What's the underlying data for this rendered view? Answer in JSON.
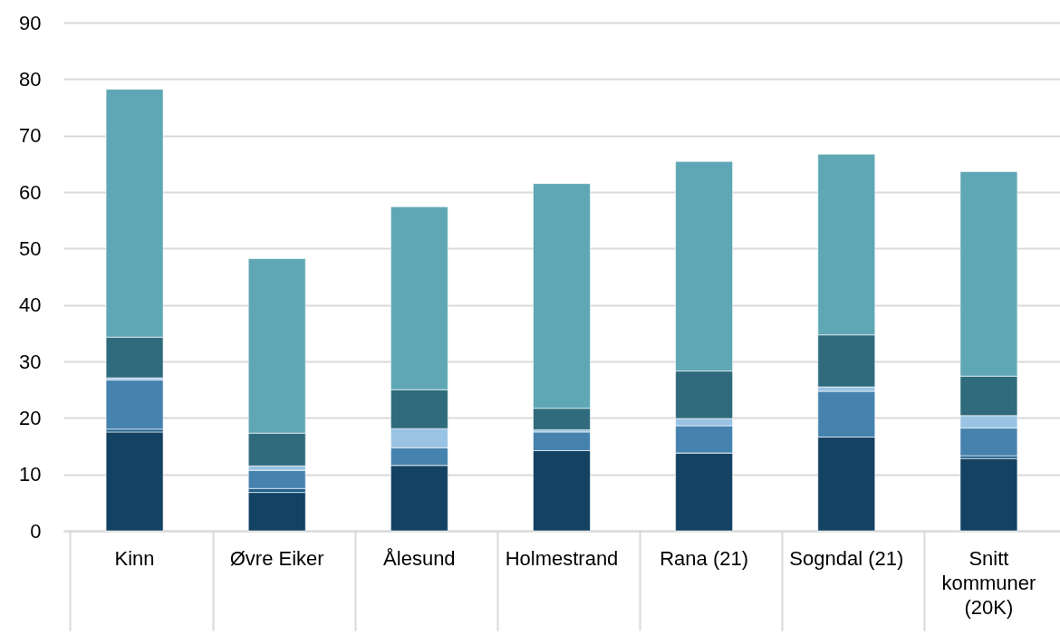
{
  "chart_data": {
    "type": "bar",
    "stacked": true,
    "categories": [
      "Kinn",
      "Øvre Eiker",
      "Ålesund",
      "Holmestrand",
      "Rana (21)",
      "Sogndal (21)",
      "Snitt kommuner (20K)"
    ],
    "series": [
      {
        "color": "#134263",
        "values": [
          17.5,
          6.8,
          11.6,
          14.2,
          13.8,
          16.6,
          12.8
        ]
      },
      {
        "color": "#1f5f8b",
        "values": [
          0.5,
          0.7,
          0,
          0,
          0,
          0,
          0.5
        ]
      },
      {
        "color": "#4682ae",
        "values": [
          8.7,
          3.2,
          3.1,
          3.3,
          4.8,
          8.1,
          4.9
        ]
      },
      {
        "color": "#9ac3e3",
        "values": [
          0.4,
          0.8,
          3.4,
          0.4,
          1.3,
          0.8,
          2.2
        ]
      },
      {
        "color": "#2f6b7c",
        "values": [
          7.2,
          5.8,
          6.9,
          3.8,
          8.4,
          9.2,
          7.0
        ]
      },
      {
        "color": "#5fa7b4",
        "values": [
          43.9,
          30.9,
          32.4,
          39.8,
          37.1,
          32.0,
          36.2
        ]
      }
    ],
    "ylim": [
      0,
      90
    ],
    "yticks": [
      0,
      10,
      20,
      30,
      40,
      50,
      60,
      70,
      80,
      90
    ],
    "grid": "y",
    "legend": false
  }
}
